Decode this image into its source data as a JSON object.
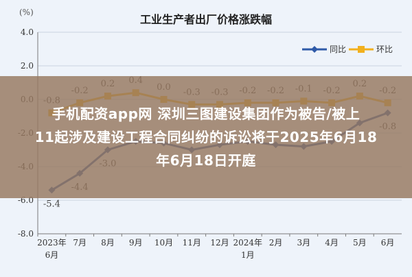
{
  "chart_data": {
    "type": "line",
    "title": "工业生产者出厂价格涨跌幅",
    "ylabel": "(%)",
    "ylim": [
      -8.0,
      4.0
    ],
    "yticks": [
      "4.0",
      "2.0",
      "0.0",
      "-2.0",
      "-4.0",
      "-6.0",
      "-8.0"
    ],
    "ytick_values": [
      4,
      2,
      0,
      -2,
      -4,
      -6,
      -8
    ],
    "categories": [
      {
        "top": "2023年",
        "bottom": "6月"
      },
      {
        "top": "7月",
        "bottom": ""
      },
      {
        "top": "8月",
        "bottom": ""
      },
      {
        "top": "9月",
        "bottom": ""
      },
      {
        "top": "10月",
        "bottom": ""
      },
      {
        "top": "11月",
        "bottom": ""
      },
      {
        "top": "12月",
        "bottom": ""
      },
      {
        "top": "2024年",
        "bottom": "1月"
      },
      {
        "top": "2月",
        "bottom": ""
      },
      {
        "top": "3月",
        "bottom": ""
      },
      {
        "top": "4月",
        "bottom": ""
      },
      {
        "top": "5月",
        "bottom": ""
      },
      {
        "top": "6月",
        "bottom": ""
      }
    ],
    "series": [
      {
        "name": "同比",
        "color": "#2e5aa8",
        "values": [
          -5.4,
          -4.4,
          -3.0,
          -2.5,
          -2.6,
          -3.0,
          -2.7,
          -2.5,
          -2.7,
          -2.8,
          -2.5,
          -1.4,
          -0.8
        ],
        "labels": [
          "-5.4",
          "-4.4",
          "-3.0",
          "",
          "",
          "",
          "",
          "",
          "",
          "",
          "",
          "",
          "-0.8"
        ]
      },
      {
        "name": "环比",
        "color": "#f2b01e",
        "values": [
          -0.8,
          -0.2,
          0.2,
          0.4,
          0.0,
          -0.3,
          -0.3,
          -0.2,
          -0.2,
          -0.1,
          -0.2,
          0.2,
          -0.2
        ],
        "labels": [
          "-0.8",
          "-0.2",
          "0.2",
          "0.4",
          "0.0",
          "-0.3",
          "-0.3",
          "-0.2",
          "-0.2",
          "-0.1",
          "-0.2",
          "0.2",
          "-0.2"
        ]
      }
    ],
    "grid": true,
    "legend_position": "top-right"
  },
  "overlay": {
    "line1": "手机配资app网 深圳三图建设集团作为被告/被上",
    "line2": "11起涉及建设工程合同纠纷的诉讼将于2025年6月18",
    "line3": "年6月18日开庭"
  }
}
